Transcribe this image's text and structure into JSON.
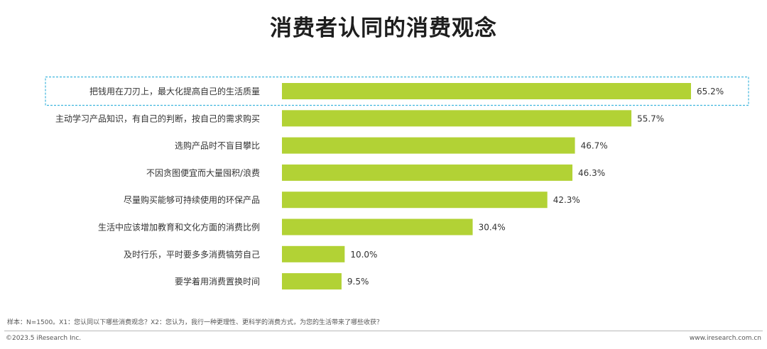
{
  "title": "消费者认同的消费观念",
  "colors": {
    "bar": "#b2d235",
    "highlight_border": "#3fb6dd",
    "text": "#333333"
  },
  "chart_data": {
    "type": "bar",
    "orientation": "horizontal",
    "categories": [
      "把钱用在刀刃上，最大化提高自己的生活质量",
      "主动学习产品知识，有自己的判断，按自己的需求购买",
      "选购产品时不盲目攀比",
      "不因贪图便宜而大量囤积/浪费",
      "尽量购买能够可持续使用的环保产品",
      "生活中应该增加教育和文化方面的消费比例",
      "及时行乐，平时要多多消费犒劳自己",
      "要学着用消费置换时间"
    ],
    "values": [
      65.2,
      55.7,
      46.7,
      46.3,
      42.3,
      30.4,
      10.0,
      9.5
    ],
    "value_labels": [
      "65.2%",
      "55.7%",
      "46.7%",
      "46.3%",
      "42.3%",
      "30.4%",
      "10.0%",
      "9.5%"
    ],
    "unit": "%",
    "xlim": [
      0,
      65.2
    ],
    "highlighted_index": 0,
    "grid": false,
    "legend": "none"
  },
  "footer": {
    "note": "样本：N=1500。X1：您认同以下哪些消费观念？X2：您认为，我行一种更理性、更科学的消费方式，为您的生活带来了哪些收获？",
    "copyright": "©2023.5 iResearch Inc.",
    "url": "www.iresearch.com.cn"
  }
}
